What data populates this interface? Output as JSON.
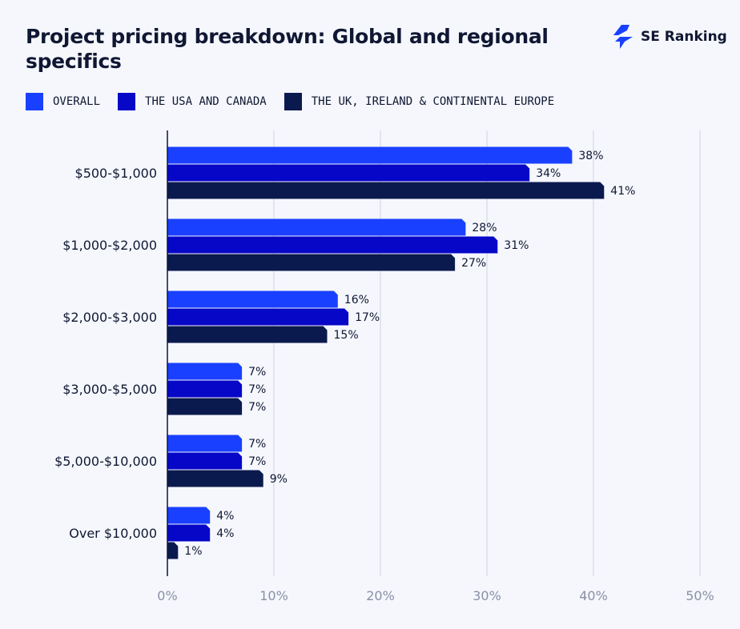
{
  "brand": {
    "name": "SE Ranking",
    "color": "#1a40ff"
  },
  "chart_data": {
    "type": "bar",
    "orientation": "horizontal",
    "title": "Project pricing breakdown: Global and regional specifics",
    "categories": [
      "$500-$1,000",
      "$1,000-$2,000",
      "$2,000-$3,000",
      "$3,000-$5,000",
      "$5,000-$10,000",
      "Over $10,000"
    ],
    "series": [
      {
        "name": "OVERALL",
        "color": "#1a40ff",
        "values": [
          38,
          28,
          16,
          7,
          7,
          4
        ]
      },
      {
        "name": "THE USA AND CANADA",
        "color": "#0707c8",
        "values": [
          34,
          31,
          17,
          7,
          7,
          4
        ]
      },
      {
        "name": "THE UK, IRELAND & CONTINENTAL EUROPE",
        "color": "#0b1a4e",
        "values": [
          41,
          27,
          15,
          7,
          9,
          1
        ]
      }
    ],
    "xlim": [
      0,
      50
    ],
    "xticks": [
      "0%",
      "10%",
      "20%",
      "30%",
      "40%",
      "50%"
    ],
    "value_suffix": "%",
    "grid": true,
    "legend_position": "top-left"
  }
}
